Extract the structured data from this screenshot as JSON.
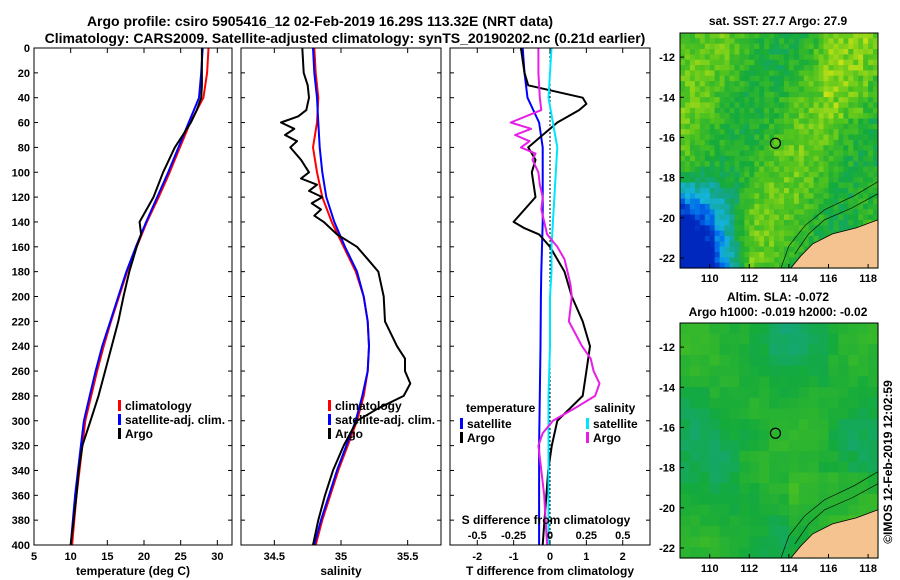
{
  "title": {
    "line1": "Argo profile: csiro 5905416_12 02-Feb-2019 16.29S 113.32E (NRT data)",
    "line2": "Climatology: CARS2009. Satellite-adjusted climatology: synTS_20190202.nc (0.21d earlier)"
  },
  "colors": {
    "climatology": "#ff0000",
    "satellite": "#0000ff",
    "argo": "#000000",
    "sat_salinity": "#00e5ff",
    "argo_salinity": "#e61ee6",
    "land": "#f5c38f"
  },
  "depth_axis": {
    "ticks": [
      0,
      20,
      40,
      60,
      80,
      100,
      120,
      140,
      160,
      180,
      200,
      220,
      240,
      260,
      280,
      300,
      320,
      340,
      360,
      380,
      400
    ],
    "ylim": [
      0,
      400
    ]
  },
  "chart_data": [
    {
      "type": "line",
      "name": "temperature",
      "xlabel": "temperature (deg C)",
      "xlim": [
        5,
        32
      ],
      "xticks": [
        5,
        10,
        15,
        20,
        25,
        30
      ],
      "legend": {
        "items": [
          "climatology",
          "satellite-adj. clim.",
          "Argo"
        ],
        "placement": "lower-right"
      },
      "series": [
        {
          "name": "climatology",
          "color": "#ff0000",
          "depth": [
            0,
            20,
            40,
            50,
            60,
            70,
            80,
            100,
            120,
            140,
            160,
            180,
            200,
            220,
            240,
            260,
            280,
            300,
            320,
            340,
            360,
            380,
            400
          ],
          "values": [
            28.8,
            28.6,
            28.1,
            27.2,
            26.3,
            25.6,
            24.9,
            23.5,
            22.0,
            20.4,
            19.0,
            17.7,
            16.6,
            15.5,
            14.5,
            13.6,
            12.8,
            12.0,
            11.6,
            11.2,
            10.8,
            10.5,
            10.2
          ]
        },
        {
          "name": "satellite-adj. clim.",
          "color": "#0000ff",
          "depth": [
            0,
            20,
            40,
            50,
            60,
            70,
            80,
            100,
            120,
            140,
            160,
            180,
            200,
            220,
            240,
            260,
            280,
            300,
            320,
            340,
            360,
            380,
            400
          ],
          "values": [
            28.0,
            27.8,
            27.5,
            26.8,
            26.1,
            25.4,
            24.7,
            23.3,
            21.8,
            20.3,
            18.9,
            17.6,
            16.5,
            15.4,
            14.3,
            13.4,
            12.6,
            11.8,
            11.4,
            11.0,
            10.6,
            10.3,
            10.0
          ]
        },
        {
          "name": "Argo",
          "color": "#000000",
          "depth": [
            0,
            20,
            30,
            40,
            50,
            60,
            70,
            80,
            100,
            120,
            140,
            150,
            160,
            180,
            200,
            220,
            240,
            260,
            280,
            300,
            320,
            340,
            360,
            380,
            400
          ],
          "values": [
            27.9,
            27.9,
            27.9,
            27.8,
            27.2,
            26.4,
            25.3,
            24.2,
            22.6,
            21.3,
            19.4,
            19.6,
            19.0,
            18.0,
            17.2,
            16.5,
            15.6,
            14.7,
            13.8,
            12.7,
            11.6,
            11.1,
            10.8,
            10.4,
            10.0
          ]
        }
      ]
    },
    {
      "type": "line",
      "name": "salinity",
      "xlabel": "salinity",
      "xlim": [
        34.25,
        35.75
      ],
      "xticks": [
        34.5,
        35,
        35.5
      ],
      "xtick_labels": [
        "34.5",
        "35",
        "35.5"
      ],
      "legend": {
        "items": [
          "climatology",
          "satellite-adj. clim.",
          "Argo"
        ],
        "placement": "lower-right"
      },
      "series": [
        {
          "name": "climatology",
          "color": "#ff0000",
          "depth": [
            0,
            20,
            40,
            60,
            80,
            100,
            120,
            140,
            160,
            180,
            200,
            220,
            240,
            260,
            280,
            300,
            320,
            340,
            360,
            380,
            400
          ],
          "values": [
            34.8,
            34.81,
            34.83,
            34.82,
            34.79,
            34.82,
            34.86,
            34.93,
            35.02,
            35.11,
            35.17,
            35.2,
            35.21,
            35.2,
            35.17,
            35.12,
            35.05,
            34.98,
            34.92,
            34.86,
            34.81
          ]
        },
        {
          "name": "satellite-adj. clim.",
          "color": "#0000ff",
          "depth": [
            0,
            20,
            40,
            60,
            80,
            100,
            120,
            140,
            160,
            180,
            200,
            220,
            240,
            260,
            280,
            300,
            320,
            340,
            360,
            380,
            400
          ],
          "values": [
            34.79,
            34.8,
            34.82,
            34.83,
            34.84,
            34.86,
            34.89,
            34.95,
            35.03,
            35.12,
            35.17,
            35.2,
            35.21,
            35.2,
            35.16,
            35.11,
            35.04,
            34.97,
            34.91,
            34.85,
            34.8
          ]
        },
        {
          "name": "Argo",
          "color": "#000000",
          "depth": [
            0,
            20,
            30,
            40,
            50,
            55,
            60,
            65,
            70,
            75,
            80,
            90,
            100,
            105,
            110,
            115,
            120,
            125,
            130,
            135,
            140,
            150,
            160,
            170,
            180,
            190,
            200,
            220,
            240,
            250,
            260,
            270,
            280,
            290,
            300,
            320,
            340,
            360,
            380,
            400
          ],
          "values": [
            34.71,
            34.72,
            34.75,
            34.76,
            34.74,
            34.68,
            34.55,
            34.65,
            34.58,
            34.67,
            34.62,
            34.7,
            34.76,
            34.7,
            34.82,
            34.76,
            34.86,
            34.78,
            34.85,
            34.8,
            34.87,
            34.97,
            35.12,
            35.2,
            35.28,
            35.3,
            35.32,
            35.33,
            35.42,
            35.48,
            35.48,
            35.52,
            35.47,
            35.28,
            35.12,
            35.02,
            34.94,
            34.88,
            34.83,
            34.79
          ]
        }
      ]
    },
    {
      "type": "line",
      "name": "difference",
      "xlabel": "T difference from climatology",
      "xlim": [
        -2.75,
        2.75
      ],
      "xticks": [
        -2,
        -1,
        0,
        1,
        2
      ],
      "xtick_labels": [
        "-2",
        "-1",
        "0",
        "1",
        "2"
      ],
      "top_axis": {
        "label": "S difference from climatology",
        "ticks": [
          -0.5,
          -0.25,
          0,
          0.25,
          0.5
        ],
        "tick_labels": [
          "-0.5",
          "-0.25",
          "0",
          "0.25",
          "0.5"
        ]
      },
      "legend": {
        "left_header": "temperature",
        "left_items": [
          "satellite",
          "Argo"
        ],
        "right_header": "salinity",
        "right_items": [
          "satellite",
          "Argo"
        ]
      },
      "series": [
        {
          "name": "T satellite",
          "color": "#0000ff",
          "depth": [
            0,
            20,
            40,
            60,
            80,
            100,
            120,
            140,
            160,
            180,
            200,
            240,
            280,
            320,
            360,
            400
          ],
          "values": [
            -0.75,
            -0.7,
            -0.62,
            -0.3,
            -0.2,
            -0.2,
            -0.2,
            -0.2,
            -0.22,
            -0.24,
            -0.25,
            -0.26,
            -0.28,
            -0.3,
            -0.3,
            -0.3
          ]
        },
        {
          "name": "T Argo",
          "color": "#000000",
          "depth": [
            0,
            20,
            30,
            40,
            45,
            50,
            60,
            70,
            80,
            90,
            100,
            120,
            140,
            145,
            150,
            160,
            180,
            200,
            220,
            240,
            260,
            280,
            300,
            320,
            340,
            360,
            380,
            400
          ],
          "values": [
            -0.8,
            -0.7,
            -0.6,
            0.9,
            1.0,
            0.8,
            0.2,
            -0.2,
            -0.6,
            -0.4,
            -0.5,
            -0.4,
            -1.0,
            -0.7,
            -0.3,
            0.0,
            0.4,
            0.6,
            0.9,
            1.1,
            1.0,
            0.9,
            0.2,
            0.05,
            -0.05,
            -0.1,
            -0.15,
            -0.2
          ]
        },
        {
          "name": "S satellite",
          "color": "#00e5ff",
          "depth": [
            0,
            20,
            40,
            60,
            80,
            100,
            120,
            140,
            160,
            180,
            200,
            240,
            280,
            320,
            360,
            400
          ],
          "values": [
            0.01,
            0.0,
            -0.01,
            0.02,
            0.05,
            0.04,
            0.03,
            0.02,
            0.01,
            0.01,
            0.0,
            0.0,
            -0.01,
            -0.01,
            -0.01,
            -0.01
          ]
        },
        {
          "name": "S Argo",
          "color": "#e61ee6",
          "depth": [
            0,
            20,
            40,
            50,
            60,
            65,
            70,
            75,
            80,
            85,
            90,
            100,
            110,
            120,
            130,
            140,
            150,
            160,
            170,
            180,
            190,
            200,
            220,
            240,
            250,
            260,
            270,
            280,
            290,
            300,
            310,
            320,
            340,
            360,
            380,
            400
          ],
          "values": [
            -0.08,
            -0.08,
            -0.07,
            -0.06,
            -0.27,
            -0.13,
            -0.24,
            -0.14,
            -0.2,
            -0.1,
            -0.12,
            -0.08,
            -0.07,
            -0.05,
            -0.06,
            -0.04,
            -0.02,
            0.05,
            0.1,
            0.12,
            0.14,
            0.15,
            0.13,
            0.22,
            0.28,
            0.3,
            0.34,
            0.31,
            0.17,
            0.02,
            -0.05,
            -0.08,
            -0.06,
            -0.04,
            -0.03,
            -0.02
          ]
        }
      ]
    },
    {
      "type": "heatmap",
      "name": "sst-map",
      "title": "sat. SST: 27.7 Argo: 27.9",
      "xticks": [
        110,
        112,
        114,
        116,
        118
      ],
      "yticks": [
        -12,
        -14,
        -16,
        -18,
        -20,
        -22
      ],
      "xlim": [
        108.5,
        118.5
      ],
      "ylim": [
        -22.5,
        -10.8
      ],
      "marker": {
        "lon": 113.32,
        "lat": -16.29
      }
    },
    {
      "type": "heatmap",
      "name": "sla-map",
      "title": "Altim. SLA: -0.072",
      "subtitle": "Argo h1000: -0.019 h2000: -0.02",
      "xticks": [
        110,
        112,
        114,
        116,
        118
      ],
      "yticks": [
        -12,
        -14,
        -16,
        -18,
        -20,
        -22
      ],
      "xlim": [
        108.5,
        118.5
      ],
      "ylim": [
        -22.5,
        -10.8
      ],
      "marker": {
        "lon": 113.32,
        "lat": -16.29
      }
    }
  ],
  "credit": "©IMOS 12-Feb-2019 12:02:59"
}
